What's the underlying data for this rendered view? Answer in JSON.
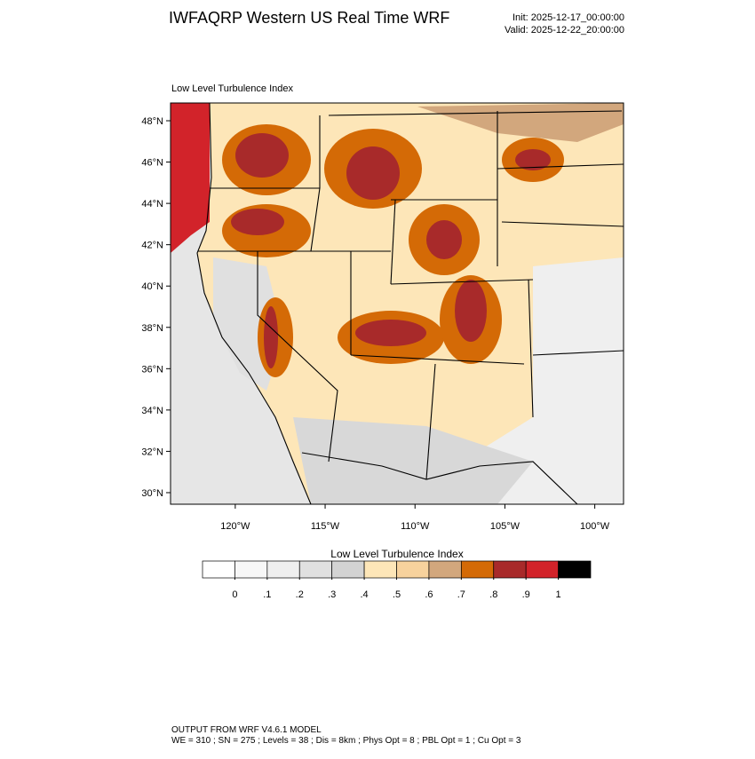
{
  "header": {
    "title": "IWFAQRP Western US Real Time WRF",
    "init": "Init: 2025-12-17_00:00:00",
    "valid": "Valid: 2025-12-22_20:00:00"
  },
  "map": {
    "subtitle": "Low Level Turbulence Index",
    "xlim": [
      -123.6,
      -98.4
    ],
    "ylim": [
      29.44,
      48.86
    ],
    "yticks": [
      {
        "value": 30,
        "label": "30°N"
      },
      {
        "value": 32,
        "label": "32°N"
      },
      {
        "value": 34,
        "label": "34°N"
      },
      {
        "value": 36,
        "label": "36°N"
      },
      {
        "value": 38,
        "label": "38°N"
      },
      {
        "value": 40,
        "label": "40°N"
      },
      {
        "value": 42,
        "label": "42°N"
      },
      {
        "value": 44,
        "label": "44°N"
      },
      {
        "value": 46,
        "label": "46°N"
      },
      {
        "value": 48,
        "label": "48°N"
      }
    ],
    "xticks": [
      {
        "value": -120,
        "label": "120°W"
      },
      {
        "value": -115,
        "label": "115°W"
      },
      {
        "value": -110,
        "label": "110°W"
      },
      {
        "value": -105,
        "label": "105°W"
      },
      {
        "value": -100,
        "label": "100°W"
      }
    ]
  },
  "colorbar": {
    "title": "Low Level Turbulence Index",
    "colors": [
      "#ffffff",
      "#f7f7f7",
      "#efefef",
      "#e0e0e0",
      "#d3d3d3",
      "#fde6b8",
      "#f7d29d",
      "#d2a77d",
      "#d46a06",
      "#a82a2a",
      "#d2232a",
      "#000000"
    ],
    "ticks": [
      0,
      {
        "value": 0.1,
        "label": ".1"
      },
      {
        "value": 0.2,
        "label": ".2"
      },
      {
        "value": 0.3,
        "label": ".3"
      },
      {
        "value": 0.4,
        "label": ".4"
      },
      {
        "value": 0.5,
        "label": ".5"
      },
      {
        "value": 0.6,
        "label": ".6"
      },
      {
        "value": 0.7,
        "label": ".7"
      },
      {
        "value": 0.8,
        "label": ".8"
      },
      {
        "value": 0.9,
        "label": ".9"
      },
      1
    ]
  },
  "footer": {
    "line1": "OUTPUT FROM WRF V4.6.1 MODEL",
    "line2": "WE = 310 ; SN = 275 ; Levels = 38 ; Dis = 8km ; Phys Opt = 8 ; PBL Opt = 1 ; Cu Opt = 3"
  }
}
